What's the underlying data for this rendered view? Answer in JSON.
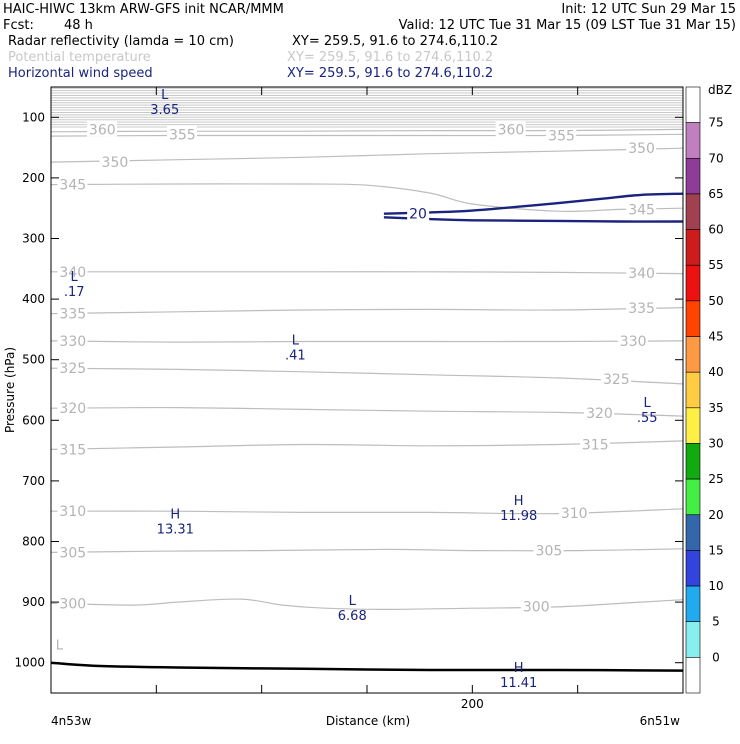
{
  "header": {
    "line1_left": "HAIC-HIWC 13km ARW-GFS init   NCAR/MMM",
    "line1_right": "Init: 12 UTC Sun 29 Mar 15",
    "fcst_label": "Fcst:",
    "fcst_value": "48 h",
    "valid": "Valid: 12 UTC Tue 31 Mar 15 (09 LST Tue 31 Mar 15)",
    "fields": [
      {
        "name": "Radar reflectivity (lamda = 10 cm)",
        "xy": "XY= 259.5, 91.6 to 274.6,110.2",
        "color": "#000000"
      },
      {
        "name": "Potential temperature",
        "xy": "XY= 259.5, 91.6 to 274.6,110.2",
        "color": "#c8c8c8"
      },
      {
        "name": "Horizontal wind speed",
        "xy": "XY= 259.5, 91.6 to 274.6,110.2",
        "color": "#1a237e"
      }
    ]
  },
  "chart_data": {
    "type": "contour",
    "xlabel": "Distance (km)",
    "ylabel": "Pressure (hPa)",
    "x_start_label": "4n53w",
    "x_end_label": "6n51w",
    "xlim": [
      0,
      300
    ],
    "xticks": [
      200
    ],
    "ylim_hpa": [
      50,
      1050
    ],
    "yticks": [
      100,
      200,
      300,
      400,
      500,
      600,
      700,
      800,
      900,
      1000
    ],
    "theta_contours": [
      {
        "level": 300,
        "x": [
          0,
          40,
          60,
          90,
          110,
          130,
          160,
          200,
          240,
          280,
          300
        ],
        "p": [
          902,
          905,
          900,
          895,
          905,
          910,
          912,
          910,
          908,
          900,
          896
        ]
      },
      {
        "level": 305,
        "x": [
          0,
          50,
          100,
          160,
          200,
          250,
          300
        ],
        "p": [
          818,
          816,
          815,
          813,
          815,
          815,
          812
        ]
      },
      {
        "level": 310,
        "x": [
          0,
          60,
          120,
          180,
          240,
          300
        ],
        "p": [
          750,
          750,
          752,
          752,
          754,
          746
        ]
      },
      {
        "level": 315,
        "x": [
          0,
          60,
          120,
          180,
          240,
          300
        ],
        "p": [
          648,
          644,
          640,
          642,
          640,
          634
        ]
      },
      {
        "level": 320,
        "x": [
          0,
          60,
          120,
          180,
          240,
          300
        ],
        "p": [
          580,
          579,
          582,
          585,
          587,
          593
        ]
      },
      {
        "level": 325,
        "x": [
          0,
          60,
          120,
          180,
          240,
          300
        ],
        "p": [
          514,
          516,
          520,
          525,
          530,
          540
        ]
      },
      {
        "level": 330,
        "x": [
          0,
          60,
          120,
          180,
          240,
          300
        ],
        "p": [
          469,
          471,
          470,
          470,
          470,
          469
        ]
      },
      {
        "level": 335,
        "x": [
          0,
          60,
          120,
          180,
          240,
          300
        ],
        "p": [
          424,
          421,
          418,
          417,
          418,
          414
        ]
      },
      {
        "level": 340,
        "x": [
          0,
          60,
          120,
          180,
          240,
          300
        ],
        "p": [
          355,
          355,
          355,
          355,
          356,
          358
        ]
      },
      {
        "level": 345,
        "x": [
          0,
          60,
          120,
          150,
          180,
          200,
          240,
          270,
          300
        ],
        "p": [
          211,
          210,
          210,
          212,
          225,
          243,
          255,
          252,
          250
        ]
      },
      {
        "level": 350,
        "x": [
          0,
          60,
          120,
          180,
          240,
          300
        ],
        "p": [
          174,
          170,
          166,
          160,
          156,
          151
        ]
      },
      {
        "level": 355,
        "x": [
          0,
          60,
          120,
          180,
          240,
          300
        ],
        "p": [
          131,
          130,
          130,
          130,
          130,
          128
        ]
      },
      {
        "level": 360,
        "x": [
          0,
          60,
          120,
          180,
          240,
          300
        ],
        "p": [
          124,
          123,
          123,
          122,
          122,
          120
        ]
      }
    ],
    "theta_labels": [
      {
        "text": "300",
        "x": 4,
        "p": 902
      },
      {
        "text": "300",
        "x": 224,
        "p": 907
      },
      {
        "text": "305",
        "x": 4,
        "p": 818
      },
      {
        "text": "305",
        "x": 230,
        "p": 815
      },
      {
        "text": "310",
        "x": 4,
        "p": 750
      },
      {
        "text": "310",
        "x": 242,
        "p": 753
      },
      {
        "text": "315",
        "x": 4,
        "p": 648
      },
      {
        "text": "315",
        "x": 252,
        "p": 640
      },
      {
        "text": "320",
        "x": 4,
        "p": 580
      },
      {
        "text": "320",
        "x": 254,
        "p": 588
      },
      {
        "text": "325",
        "x": 4,
        "p": 514
      },
      {
        "text": "325",
        "x": 262,
        "p": 532
      },
      {
        "text": "330",
        "x": 4,
        "p": 469
      },
      {
        "text": "330",
        "x": 270,
        "p": 469
      },
      {
        "text": "335",
        "x": 4,
        "p": 424
      },
      {
        "text": "335",
        "x": 274,
        "p": 415
      },
      {
        "text": "340",
        "x": 4,
        "p": 355
      },
      {
        "text": "340",
        "x": 274,
        "p": 357
      },
      {
        "text": "345",
        "x": 4,
        "p": 211
      },
      {
        "text": "345",
        "x": 274,
        "p": 252
      },
      {
        "text": "350",
        "x": 24,
        "p": 174
      },
      {
        "text": "350",
        "x": 274,
        "p": 151
      },
      {
        "text": "355",
        "x": 56,
        "p": 128
      },
      {
        "text": "355",
        "x": 236,
        "p": 130
      },
      {
        "text": "360",
        "x": 18,
        "p": 120
      },
      {
        "text": "360",
        "x": 212,
        "p": 120
      }
    ],
    "wind_contours": [
      {
        "level": 20,
        "x": [
          158,
          180,
          200,
          230,
          260,
          280,
          300
        ],
        "p": [
          259,
          257,
          254,
          245,
          235,
          228,
          226
        ]
      },
      {
        "level": 20,
        "x": [
          158,
          180,
          200,
          240,
          270,
          300
        ],
        "p": [
          265,
          268,
          270,
          271,
          272,
          272
        ]
      }
    ],
    "wind_labels": [
      {
        "text": "20",
        "x": 170,
        "p": 259
      }
    ],
    "surface_line": {
      "x": [
        0,
        20,
        60,
        120,
        180,
        240,
        300
      ],
      "p": [
        1000,
        1005,
        1008,
        1010,
        1012,
        1012,
        1013
      ]
    },
    "extrema": [
      {
        "type": "L",
        "value": "3.65",
        "x": 54,
        "p": 70,
        "color": "#1a237e"
      },
      {
        "type": "L",
        "value": ".17",
        "x": 11,
        "p": 370,
        "color": "#1a237e"
      },
      {
        "type": "L",
        "value": ".41",
        "x": 116,
        "p": 475,
        "color": "#1a237e"
      },
      {
        "type": "L",
        "value": ".55",
        "x": 283,
        "p": 578,
        "color": "#1a237e"
      },
      {
        "type": "H",
        "value": "13.31",
        "x": 59,
        "p": 762,
        "color": "#1a237e"
      },
      {
        "type": "H",
        "value": "11.98",
        "x": 222,
        "p": 740,
        "color": "#1a237e"
      },
      {
        "type": "L",
        "value": "6.68",
        "x": 143,
        "p": 905,
        "color": "#1a237e"
      },
      {
        "type": "H",
        "value": "11.41",
        "x": 222,
        "p": 1015,
        "color": "#1a237e"
      },
      {
        "type": "L",
        "value": "",
        "x": 4,
        "p": 978,
        "color": "#b4b4b4"
      }
    ],
    "colorbar": {
      "unit": "dBZ",
      "levels": [
        75,
        70,
        65,
        60,
        55,
        50,
        45,
        40,
        35,
        30,
        25,
        20,
        15,
        10,
        5,
        0
      ],
      "colors": [
        "#ffffff",
        "#c080c0",
        "#8e3c96",
        "#a04050",
        "#cc1c1c",
        "#ee1111",
        "#ff4400",
        "#ff9944",
        "#ffcc44",
        "#ffee44",
        "#11aa11",
        "#44ee44",
        "#3366aa",
        "#3344dd",
        "#22aaee",
        "#88eeee",
        "#ffffff"
      ]
    }
  }
}
